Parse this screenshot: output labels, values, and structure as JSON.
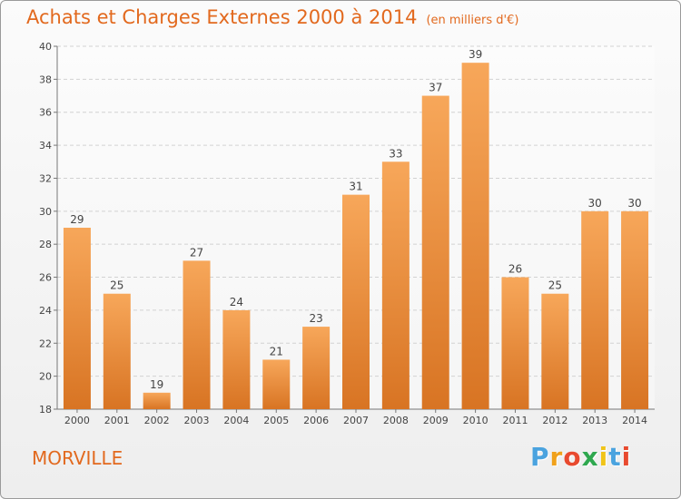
{
  "title": "Achats et Charges Externes 2000 à 2014",
  "subtitle": "(en milliers d'€)",
  "city": "MORVILLE",
  "logo": {
    "letters": [
      "P",
      "r",
      "o",
      "x",
      "i",
      "t",
      "i"
    ],
    "colors": [
      "#4aa3df",
      "#f0a11b",
      "#e84a2f",
      "#2fa84f",
      "#f0c419",
      "#4aa3df",
      "#e84a2f"
    ]
  },
  "colors": {
    "accent": "#e2691e",
    "bar_top": "#f7a75a",
    "bar_bottom": "#d87423"
  },
  "chart_data": {
    "type": "bar",
    "title": "Achats et Charges Externes 2000 à 2014",
    "subtitle": "(en milliers d'€)",
    "categories": [
      "2000",
      "2001",
      "2002",
      "2003",
      "2004",
      "2005",
      "2006",
      "2007",
      "2008",
      "2009",
      "2010",
      "2011",
      "2012",
      "2013",
      "2014"
    ],
    "values": [
      29,
      25,
      19,
      27,
      24,
      21,
      23,
      31,
      33,
      37,
      39,
      26,
      25,
      30,
      30
    ],
    "ylim": [
      18,
      40
    ],
    "yticks": [
      "18",
      "20",
      "22",
      "24",
      "26",
      "28",
      "30",
      "32",
      "34",
      "36",
      "38",
      "40"
    ],
    "grid": true
  }
}
